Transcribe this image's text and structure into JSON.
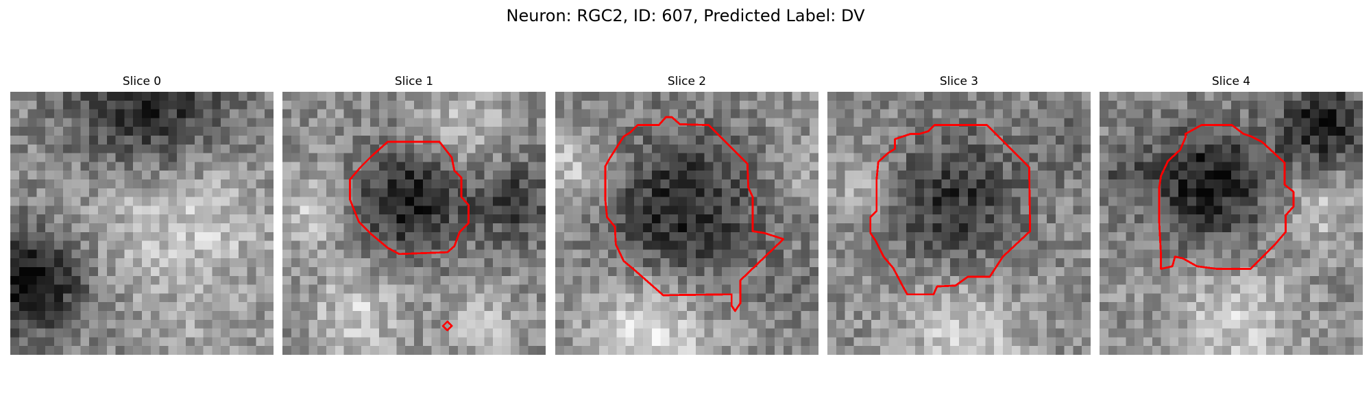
{
  "figure": {
    "title": "Neuron: RGC2, ID: 607, Predicted Label: DV",
    "outline_color": "#ff0000"
  },
  "panels": [
    {
      "title": "Slice 0",
      "has_outline": false,
      "seed": 11
    },
    {
      "title": "Slice 1",
      "has_outline": true,
      "seed": 23
    },
    {
      "title": "Slice 2",
      "has_outline": true,
      "seed": 37
    },
    {
      "title": "Slice 3",
      "has_outline": true,
      "seed": 53
    },
    {
      "title": "Slice 4",
      "has_outline": true,
      "seed": 71
    }
  ]
}
